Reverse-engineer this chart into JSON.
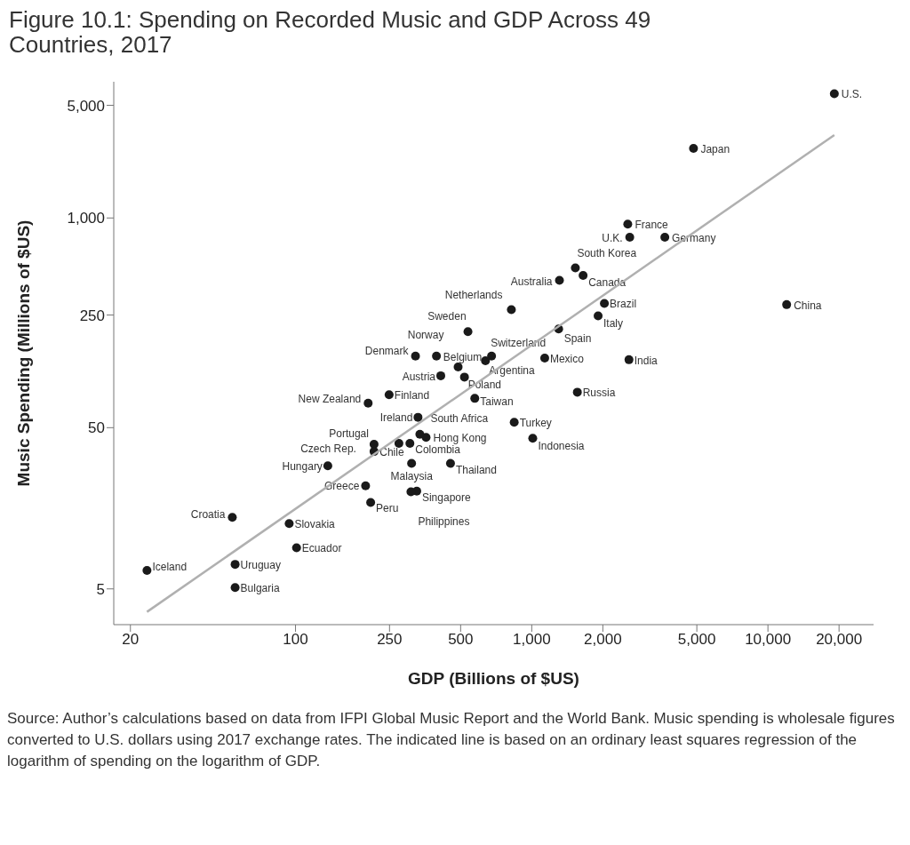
{
  "chart_data": {
    "type": "scatter",
    "title": "Figure 10.1: Spending on Recorded Music and GDP Across 49 Countries, 2017",
    "xlabel": "GDP (Billions of $US)",
    "ylabel": "Music Spending (Millions of $US)",
    "annotations": [
      "Source: Author’s calculations based on data from IFPI Global Music Report and the World Bank. Music spending is wholesale figures converted to U.S. dollars using 2017 exchange rates. The indicated line is based on an ordinary least squares regression of the logarithm of spending on the logarithm of GDP."
    ],
    "log": "xy",
    "grid": false,
    "legend": false,
    "marker": "circle",
    "xlim": [
      17,
      28000
    ],
    "ylim": [
      3,
      7000
    ],
    "xticks": [
      20,
      100,
      250,
      500,
      {
        "value": 1000,
        "label": "1,000"
      },
      {
        "value": 2000,
        "label": "2,000"
      },
      {
        "value": 5000,
        "label": "5,000"
      },
      {
        "value": 10000,
        "label": "10,000"
      },
      {
        "value": 20000,
        "label": "20,000"
      }
    ],
    "yticks": [
      5,
      50,
      250,
      {
        "value": 1000,
        "label": "1,000"
      },
      {
        "value": 5000,
        "label": "5,000"
      }
    ],
    "series": [
      {
        "name": "U.S.",
        "color": "#1a1a1a",
        "x": [
          19100
        ],
        "values": [
          5900
        ]
      },
      {
        "name": "Japan",
        "color": "#1a1a1a",
        "x": [
          4840
        ],
        "values": [
          2700
        ]
      },
      {
        "name": "U.K.",
        "color": "#1a1a1a",
        "x": [
          2600
        ],
        "values": [
          760
        ]
      },
      {
        "name": "Germany",
        "color": "#1a1a1a",
        "x": [
          3660
        ],
        "values": [
          760
        ]
      },
      {
        "name": "France",
        "color": "#1a1a1a",
        "x": [
          2550
        ],
        "values": [
          915
        ]
      },
      {
        "name": "South Korea",
        "color": "#1a1a1a",
        "x": [
          1530
        ],
        "values": [
          490
        ]
      },
      {
        "name": "Canada",
        "color": "#1a1a1a",
        "x": [
          1650
        ],
        "values": [
          440
        ]
      },
      {
        "name": "Australia",
        "color": "#1a1a1a",
        "x": [
          1310
        ],
        "values": [
          410
        ]
      },
      {
        "name": "Netherlands",
        "color": "#1a1a1a",
        "x": [
          820
        ],
        "values": [
          270
        ]
      },
      {
        "name": "Brazil",
        "color": "#1a1a1a",
        "x": [
          2030
        ],
        "values": [
          295
        ]
      },
      {
        "name": "Italy",
        "color": "#1a1a1a",
        "x": [
          1910
        ],
        "values": [
          247
        ]
      },
      {
        "name": "China",
        "color": "#1a1a1a",
        "x": [
          12000
        ],
        "values": [
          290
        ]
      },
      {
        "name": "Spain",
        "color": "#1a1a1a",
        "x": [
          1300
        ],
        "values": [
          205
        ]
      },
      {
        "name": "Sweden",
        "color": "#1a1a1a",
        "x": [
          537
        ],
        "values": [
          197
        ]
      },
      {
        "name": "Switzerland",
        "color": "#1a1a1a",
        "x": [
          676
        ],
        "values": [
          139
        ]
      },
      {
        "name": "Argentina",
        "color": "#1a1a1a",
        "x": [
          637
        ],
        "values": [
          130
        ]
      },
      {
        "name": "Mexico",
        "color": "#1a1a1a",
        "x": [
          1135
        ],
        "values": [
          135
        ]
      },
      {
        "name": "India",
        "color": "#1a1a1a",
        "x": [
          2580
        ],
        "values": [
          132
        ]
      },
      {
        "name": "Russia",
        "color": "#1a1a1a",
        "x": [
          1560
        ],
        "values": [
          83
        ]
      },
      {
        "name": "Norway",
        "color": "#1a1a1a",
        "x": [
          395
        ],
        "values": [
          139
        ]
      },
      {
        "name": "Denmark",
        "color": "#1a1a1a",
        "x": [
          322
        ],
        "values": [
          139
        ]
      },
      {
        "name": "Belgium",
        "color": "#1a1a1a",
        "x": [
          488
        ],
        "values": [
          119
        ]
      },
      {
        "name": "Poland",
        "color": "#1a1a1a",
        "x": [
          519
        ],
        "values": [
          103
        ]
      },
      {
        "name": "Austria",
        "color": "#1a1a1a",
        "x": [
          412
        ],
        "values": [
          105
        ]
      },
      {
        "name": "Finland",
        "color": "#1a1a1a",
        "x": [
          249
        ],
        "values": [
          80
        ]
      },
      {
        "name": "Taiwan",
        "color": "#1a1a1a",
        "x": [
          574
        ],
        "values": [
          76
        ]
      },
      {
        "name": "New Zealand",
        "color": "#1a1a1a",
        "x": [
          203
        ],
        "values": [
          71
        ]
      },
      {
        "name": "Ireland",
        "color": "#1a1a1a",
        "x": [
          330
        ],
        "values": [
          58
        ]
      },
      {
        "name": "Turkey",
        "color": "#1a1a1a",
        "x": [
          843
        ],
        "values": [
          54
        ]
      },
      {
        "name": "Indonesia",
        "color": "#1a1a1a",
        "x": [
          1010
        ],
        "values": [
          43
        ]
      },
      {
        "name": "Portugal",
        "color": "#1a1a1a",
        "x": [
          215
        ],
        "values": [
          39.5
        ]
      },
      {
        "name": "Czech Rep.",
        "color": "#1a1a1a",
        "x": [
          215
        ],
        "values": [
          35.6
        ]
      },
      {
        "name": "Chile",
        "color": "#1a1a1a",
        "x": [
          274
        ],
        "values": [
          40
        ]
      },
      {
        "name": "Colombia",
        "color": "#1a1a1a",
        "x": [
          305
        ],
        "values": [
          40
        ]
      },
      {
        "name": "South Africa",
        "color": "#1a1a1a",
        "x": [
          336
        ],
        "values": [
          45.5
        ]
      },
      {
        "name": "Hong Kong",
        "color": "#1a1a1a",
        "x": [
          357
        ],
        "values": [
          43.5
        ]
      },
      {
        "name": "Thailand",
        "color": "#1a1a1a",
        "x": [
          453
        ],
        "values": [
          30
        ]
      },
      {
        "name": "Malaysia",
        "color": "#1a1a1a",
        "x": [
          310
        ],
        "values": [
          30
        ]
      },
      {
        "name": "Hungary",
        "color": "#1a1a1a",
        "x": [
          137
        ],
        "values": [
          29
        ]
      },
      {
        "name": "Greece",
        "color": "#1a1a1a",
        "x": [
          198
        ],
        "values": [
          21.8
        ]
      },
      {
        "name": "Singapore",
        "color": "#1a1a1a",
        "x": [
          326
        ],
        "values": [
          20.2
        ]
      },
      {
        "name": "Philippines",
        "color": "#1a1a1a",
        "x": [
          308
        ],
        "values": [
          20
        ]
      },
      {
        "name": "Peru",
        "color": "#1a1a1a",
        "x": [
          208
        ],
        "values": [
          17.2
        ]
      },
      {
        "name": "Croatia",
        "color": "#1a1a1a",
        "x": [
          54
        ],
        "values": [
          13.9
        ]
      },
      {
        "name": "Slovakia",
        "color": "#1a1a1a",
        "x": [
          94
        ],
        "values": [
          12.7
        ]
      },
      {
        "name": "Ecuador",
        "color": "#1a1a1a",
        "x": [
          101
        ],
        "values": [
          9
        ]
      },
      {
        "name": "Iceland",
        "color": "#1a1a1a",
        "x": [
          23.5
        ],
        "values": [
          6.5
        ]
      },
      {
        "name": "Uruguay",
        "color": "#1a1a1a",
        "x": [
          55.5
        ],
        "values": [
          7.1
        ]
      },
      {
        "name": "Bulgaria",
        "color": "#1a1a1a",
        "x": [
          55.5
        ],
        "values": [
          5.1
        ]
      },
      {
        "type": "line",
        "color": "#b0b0b0",
        "marker": "none",
        "x": [
          23.5,
          19100
        ],
        "values": [
          3.6,
          3270
        ]
      }
    ]
  }
}
